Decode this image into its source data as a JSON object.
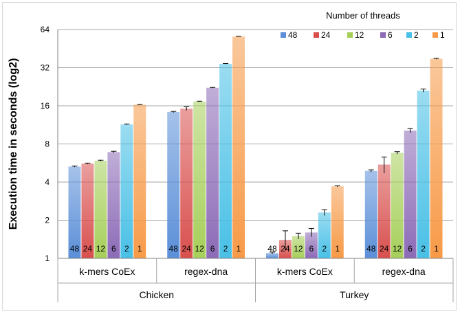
{
  "chart_data": {
    "type": "bar",
    "ylabel": "Execution time in seconds (log2)",
    "yscale": "log2",
    "ylim": [
      1,
      64
    ],
    "yticks": [
      "1",
      "2",
      "4",
      "8",
      "16",
      "32",
      "64"
    ],
    "grid": true,
    "legend": {
      "title": "Number of threads",
      "position": "top-right"
    },
    "groups": [
      "Chicken",
      "Turkey"
    ],
    "categories": [
      "k-mers CoEx",
      "regex-dna",
      "k-mers CoEx",
      "regex-dna"
    ],
    "category_groups": [
      "Chicken",
      "Chicken",
      "Turkey",
      "Turkey"
    ],
    "series": [
      {
        "name": "48",
        "color": "#5b8fd8",
        "values": [
          5.3,
          14.3,
          1.1,
          4.9
        ],
        "errors": [
          0.05,
          0.15,
          0.02,
          0.1
        ]
      },
      {
        "name": "24",
        "color": "#d8504e",
        "values": [
          5.6,
          15.2,
          1.4,
          5.5
        ],
        "errors": [
          0.05,
          0.5,
          0.25,
          0.8
        ]
      },
      {
        "name": "12",
        "color": "#a6cf5a",
        "values": [
          5.9,
          17.3,
          1.5,
          6.8
        ],
        "errors": [
          0.05,
          0.1,
          0.08,
          0.15
        ]
      },
      {
        "name": "6",
        "color": "#8c6bb7",
        "values": [
          6.9,
          22.2,
          1.6,
          10.2
        ],
        "errors": [
          0.1,
          0.15,
          0.12,
          0.4
        ]
      },
      {
        "name": "2",
        "color": "#49c0e6",
        "values": [
          11.4,
          34.3,
          2.3,
          21.1
        ],
        "errors": [
          0.1,
          0.2,
          0.12,
          0.6
        ]
      },
      {
        "name": "1",
        "color": "#f79a48",
        "values": [
          16.3,
          56.3,
          3.7,
          37.6
        ],
        "errors": [
          0.1,
          0.3,
          0.04,
          0.3
        ]
      }
    ],
    "bar_labels": [
      "48",
      "24",
      "12",
      "6",
      "2",
      "1"
    ]
  }
}
